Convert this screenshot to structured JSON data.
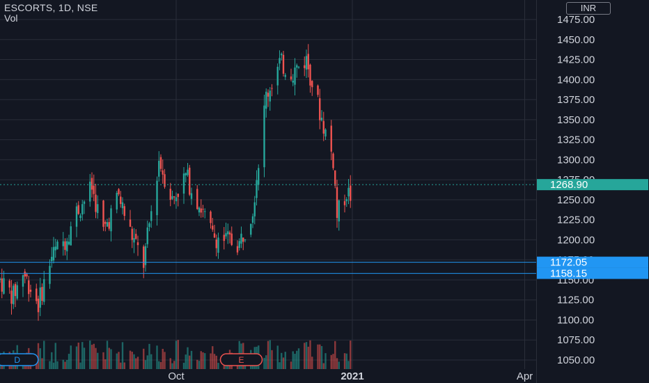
{
  "legend": {
    "title": "ESCORTS, 1D, NSE",
    "volume_label": "Vol"
  },
  "currency_label": "INR",
  "colors": {
    "background": "#131722",
    "up": "#26a69a",
    "down": "#ef5350",
    "grid": "#2a2e39",
    "text": "#d1d4dc",
    "level_line": "#2196f3",
    "level_tag": "#2196f3",
    "last_price_tag": "#26a69a"
  },
  "events": [
    {
      "label": "D",
      "type": "dividend",
      "date": "2020-07-10"
    },
    {
      "label": "E",
      "type": "earnings",
      "date": "2020-11-04"
    }
  ],
  "chart_data": {
    "type": "candlestick",
    "title": "ESCORTS, 1D, NSE",
    "y_axis": {
      "ticks": [
        1050,
        1075,
        1100,
        1125,
        1150,
        1175,
        1200,
        1225,
        1250,
        1275,
        1300,
        1325,
        1350,
        1375,
        1400,
        1425,
        1450,
        1475
      ],
      "tick_labels": [
        "1050.00",
        "1075.00",
        "1100.00",
        "1125.00",
        "1150.00",
        "1175.00",
        "1200.00",
        "1225.00",
        "1250.00",
        "1275.00",
        "1300.00",
        "1325.00",
        "1350.00",
        "1375.00",
        "1400.00",
        "1425.00",
        "1450.00",
        "1475.00"
      ],
      "range": [
        1028,
        1485
      ]
    },
    "x_axis": {
      "labels": [
        {
          "text": "Oct",
          "date": "2020-10-01",
          "bold": false
        },
        {
          "text": "2021",
          "date": "2021-01-01",
          "bold": true
        },
        {
          "text": "Apr",
          "date": "2021-04-01",
          "bold": false
        }
      ],
      "range": [
        "2020-07-01",
        "2021-04-07"
      ]
    },
    "last_price": {
      "value": 1268.9,
      "label": "1268.90"
    },
    "horizontal_levels": [
      {
        "value": 1172.05,
        "label": "1172.05"
      },
      {
        "value": 1158.15,
        "label": "1158.15"
      }
    ],
    "price_anchors": [
      [
        "2020-07-01",
        1150
      ],
      [
        "2020-07-08",
        1130
      ],
      [
        "2020-07-13",
        1160
      ],
      [
        "2020-07-21",
        1120
      ],
      [
        "2020-07-28",
        1180
      ],
      [
        "2020-08-04",
        1200
      ],
      [
        "2020-08-10",
        1235
      ],
      [
        "2020-08-18",
        1265
      ],
      [
        "2020-08-24",
        1210
      ],
      [
        "2020-09-01",
        1255
      ],
      [
        "2020-09-07",
        1210
      ],
      [
        "2020-09-14",
        1170
      ],
      [
        "2020-09-22",
        1300
      ],
      [
        "2020-09-29",
        1250
      ],
      [
        "2020-10-06",
        1280
      ],
      [
        "2020-10-13",
        1245
      ],
      [
        "2020-10-20",
        1205
      ],
      [
        "2020-10-27",
        1200
      ],
      [
        "2020-11-03",
        1195
      ],
      [
        "2020-11-10",
        1240
      ],
      [
        "2020-11-17",
        1380
      ],
      [
        "2020-11-24",
        1420
      ],
      [
        "2020-12-01",
        1410
      ],
      [
        "2020-12-08",
        1425
      ],
      [
        "2020-12-15",
        1360
      ],
      [
        "2020-12-22",
        1300
      ],
      [
        "2020-12-24",
        1230
      ],
      [
        "2020-12-29",
        1260
      ],
      [
        "2020-12-31",
        1255
      ]
    ],
    "volume": {
      "label": "Vol",
      "relative_scale": [
        0.2,
        1.0
      ]
    }
  }
}
